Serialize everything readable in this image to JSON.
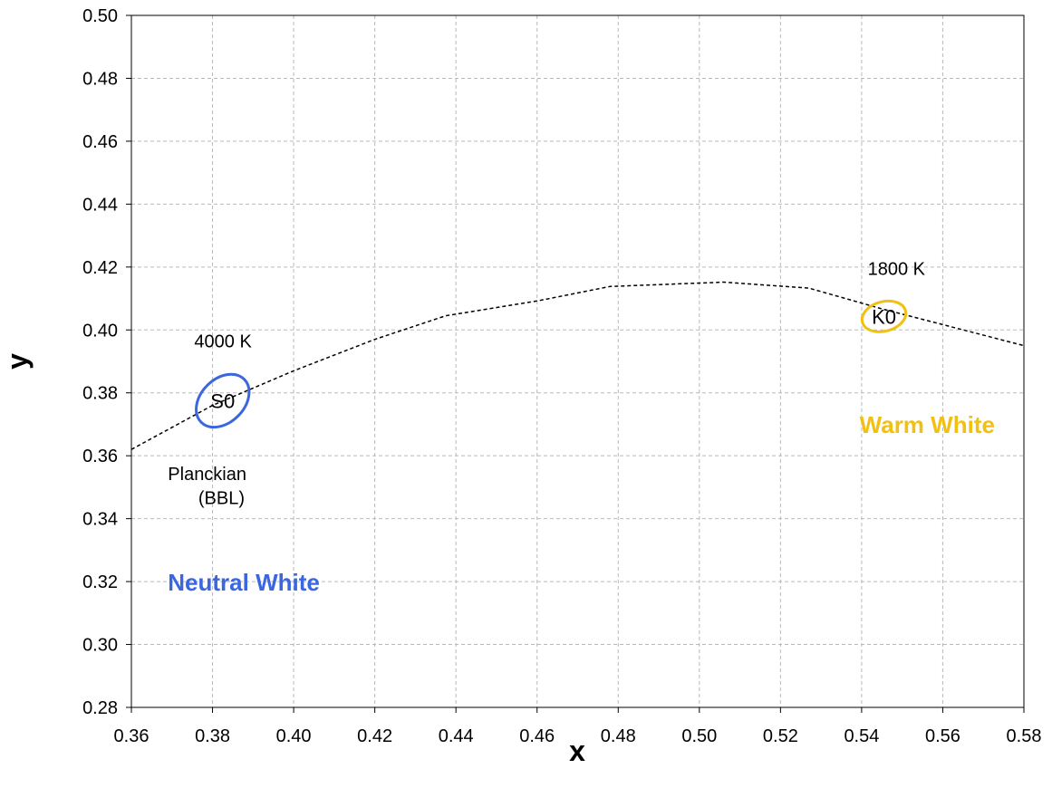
{
  "chart_data": {
    "type": "line",
    "xlabel": "x",
    "ylabel": "y",
    "xlim": [
      0.36,
      0.58
    ],
    "ylim": [
      0.28,
      0.5
    ],
    "x_ticks": [
      "0.36",
      "0.38",
      "0.40",
      "0.42",
      "0.44",
      "0.46",
      "0.48",
      "0.50",
      "0.52",
      "0.54",
      "0.56",
      "0.58"
    ],
    "y_ticks": [
      "0.28",
      "0.30",
      "0.32",
      "0.34",
      "0.36",
      "0.38",
      "0.40",
      "0.42",
      "0.44",
      "0.46",
      "0.48",
      "0.50"
    ],
    "grid": true,
    "series": [
      {
        "style": "dashed",
        "color": "#000000",
        "points": [
          [
            0.36,
            0.362
          ],
          [
            0.38,
            0.376
          ],
          [
            0.4,
            0.387
          ],
          [
            0.42,
            0.397
          ],
          [
            0.4375,
            0.4045
          ],
          [
            0.46,
            0.4092
          ],
          [
            0.478,
            0.4138
          ],
          [
            0.506,
            0.4152
          ],
          [
            0.527,
            0.4133
          ],
          [
            0.545,
            0.4067
          ],
          [
            0.56,
            0.4017
          ],
          [
            0.58,
            0.395
          ]
        ]
      }
    ],
    "ellipses": [
      {
        "label": "S0",
        "cx": 0.3825,
        "cy": 0.3775,
        "rx": 0.0075,
        "ry": 0.0069,
        "rotation_deg": -45,
        "color": "#3a66e0"
      },
      {
        "label": "K0",
        "cx": 0.5455,
        "cy": 0.4043,
        "rx": 0.0055,
        "ry": 0.0047,
        "rotation_deg": -15,
        "color": "#f2c012"
      }
    ],
    "annotations": [
      {
        "text": "4000 K",
        "x": 0.3755,
        "y": 0.3945,
        "color": "#000000",
        "weight": "normal"
      },
      {
        "text": "1800 K",
        "x": 0.5415,
        "y": 0.4175,
        "color": "#000000",
        "weight": "normal"
      },
      {
        "text": "Planckian",
        "x": 0.369,
        "y": 0.3523,
        "color": "#000000",
        "weight": "normal"
      },
      {
        "text": "(BBL)",
        "x": 0.3765,
        "y": 0.3447,
        "color": "#000000",
        "weight": "normal"
      },
      {
        "text": "Neutral White",
        "x": 0.369,
        "y": 0.3172,
        "color": "#3a66e0",
        "weight": "bold"
      },
      {
        "text": "Warm White",
        "x": 0.5395,
        "y": 0.3672,
        "color": "#f2c012",
        "weight": "bold"
      }
    ]
  }
}
